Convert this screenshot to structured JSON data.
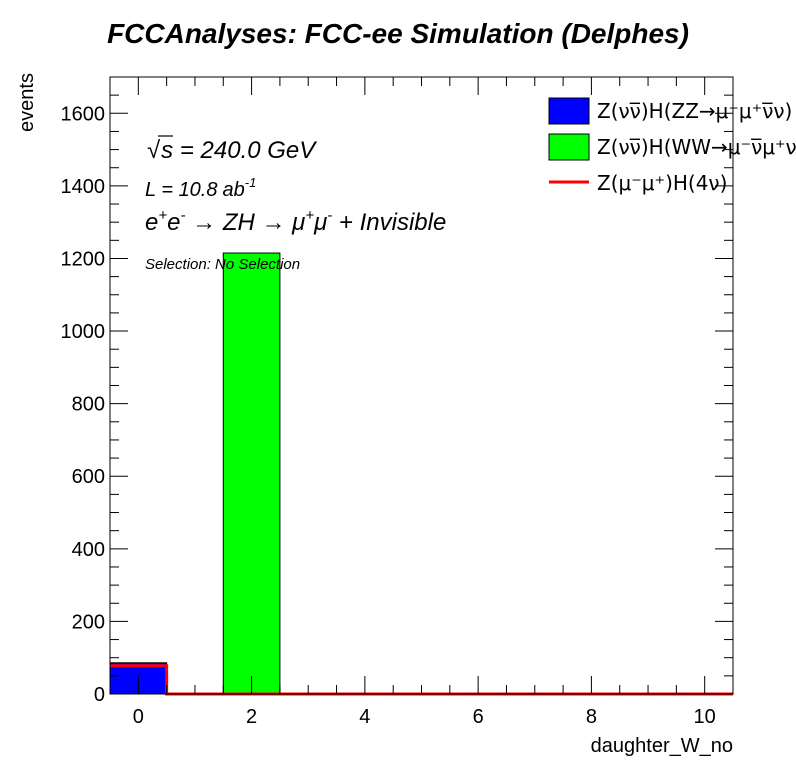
{
  "chart_data": {
    "type": "bar",
    "title": "FCCAnalyses: FCC-ee Simulation (Delphes)",
    "xlabel": "daughter_W_no",
    "ylabel": "events",
    "xlim": [
      -0.5,
      10.5
    ],
    "ylim": [
      0,
      1700
    ],
    "x_ticks": [
      0,
      2,
      4,
      6,
      8,
      10
    ],
    "y_ticks": [
      0,
      200,
      400,
      600,
      800,
      1000,
      1200,
      1400,
      1600
    ],
    "annotations": {
      "sqrt_s": "240.0 GeV",
      "lumi_value": "10.8",
      "lumi_unit": "ab",
      "lumi_exp": "-1",
      "selection": "Selection: No Selection"
    },
    "legend_placement": "top-right",
    "series": [
      {
        "name": "Z(νν̅)H(ZZ→μ⁻μ⁺ν̅ν)",
        "style": "filled",
        "color": "#0000ff",
        "stack": true,
        "bins": [
          {
            "x": 0,
            "value": 86
          }
        ]
      },
      {
        "name": "Z(νν̅)H(WW→μ⁻ν̅μ⁺ν)",
        "style": "filled",
        "color": "#00ff00",
        "stack": true,
        "bins": [
          {
            "x": 2,
            "value": 1215
          }
        ]
      },
      {
        "name": "Z(μ⁻μ⁺)H(4ν)",
        "style": "line",
        "color": "#ff0000",
        "stack": false,
        "bins": [
          {
            "x": 0,
            "value": 78
          }
        ]
      }
    ]
  }
}
